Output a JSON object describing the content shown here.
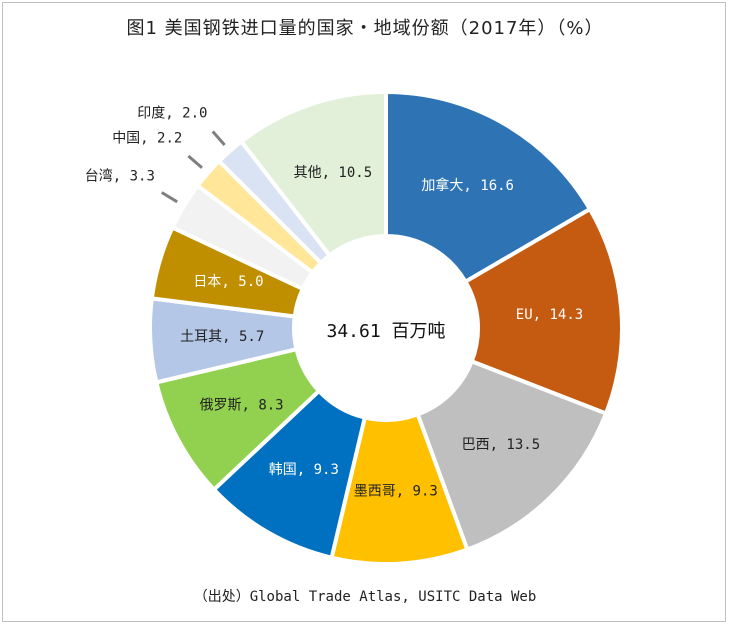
{
  "chart_data": {
    "type": "pie",
    "title": "图1 美国钢铁进口量的国家・地域份额（2017年）（%）",
    "center_label": "34.61 百万吨",
    "source": "（出处）Global Trade Atlas, USITC Data Web",
    "start_angle_deg": 0,
    "direction": "clockwise",
    "donut": true,
    "slices": [
      {
        "label": "加拿大, 16.6",
        "value": 16.6,
        "color": "#2E74B5"
      },
      {
        "label": "EU, 14.3",
        "value": 14.3,
        "color": "#C55A11"
      },
      {
        "label": "巴西, 13.5",
        "value": 13.5,
        "color": "#BFBFBF"
      },
      {
        "label": "墨西哥, 9.3",
        "value": 9.3,
        "color": "#FFC000"
      },
      {
        "label": "韩国, 9.3",
        "value": 9.3,
        "color": "#0070C0"
      },
      {
        "label": "俄罗斯, 8.3",
        "value": 8.3,
        "color": "#92D050"
      },
      {
        "label": "土耳其, 5.7",
        "value": 5.7,
        "color": "#B4C7E7"
      },
      {
        "label": "日本, 5.0",
        "value": 5.0,
        "color": "#BF8F00"
      },
      {
        "label": "台湾, 3.3",
        "value": 3.3,
        "color": "#F2F2F2"
      },
      {
        "label": "中国, 2.2",
        "value": 2.2,
        "color": "#FFE699"
      },
      {
        "label": "印度, 2.0",
        "value": 2.0,
        "color": "#DAE3F3"
      },
      {
        "label": "其他, 10.5",
        "value": 10.5,
        "color": "#E2F0D9"
      }
    ]
  }
}
